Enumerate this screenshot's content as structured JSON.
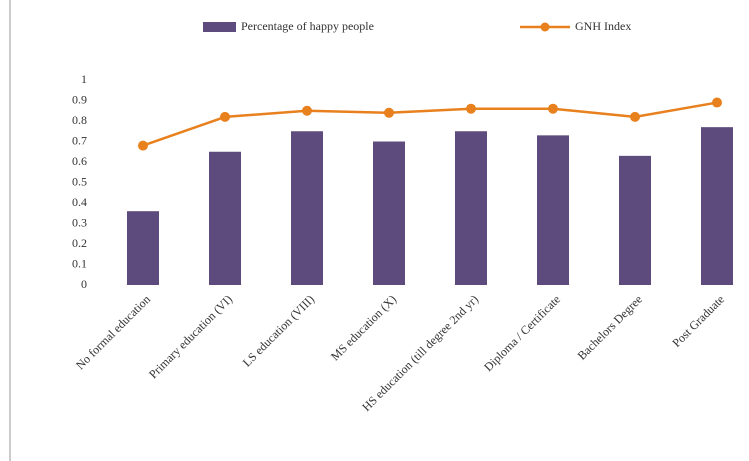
{
  "chart_data": {
    "type": "bar",
    "categories": [
      "No formal education",
      "Primary education (VI)",
      "LS education (VIII)",
      "MS education (X)",
      "HS education (till degree 2nd yr)",
      "Diploma / Certificate",
      "Bachelors Degree",
      "Post Graduate"
    ],
    "series": [
      {
        "name": "Percentage of happy people",
        "type": "bar",
        "color": "#5e4b7d",
        "values": [
          0.36,
          0.65,
          0.75,
          0.7,
          0.75,
          0.73,
          0.63,
          0.77
        ]
      },
      {
        "name": "GNH Index",
        "type": "line",
        "color": "#e8801e",
        "values": [
          0.68,
          0.82,
          0.85,
          0.84,
          0.86,
          0.86,
          0.82,
          0.89
        ]
      }
    ],
    "ylim": [
      0,
      1
    ],
    "yticks": [
      0,
      0.1,
      0.2,
      0.3,
      0.4,
      0.5,
      0.6,
      0.7,
      0.8,
      0.9,
      1
    ],
    "grid": false,
    "legend": "top"
  }
}
